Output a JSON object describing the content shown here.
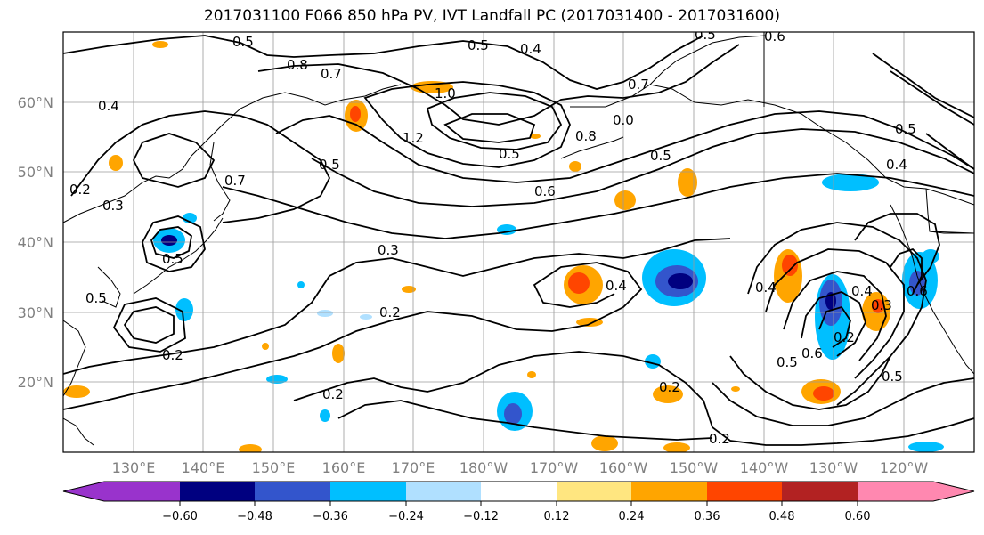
{
  "title": "2017031100 F066 850 hPa PV, IVT Landfall PC (2017031400 - 2017031600)",
  "lat_labels": [
    "60°N",
    "50°N",
    "40°N",
    "30°N",
    "20°N"
  ],
  "lon_labels": [
    "130°E",
    "140°E",
    "150°E",
    "160°E",
    "170°E",
    "180°W",
    "170°W",
    "160°W",
    "150°W",
    "140°W",
    "130°W",
    "120°W"
  ],
  "colorbar": {
    "ticks": [
      "−0.60",
      "−0.48",
      "−0.36",
      "−0.24",
      "−0.12",
      "0.12",
      "0.24",
      "0.36",
      "0.48",
      "0.60"
    ],
    "colors": [
      "#9933cc",
      "#000080",
      "#3355cc",
      "#00bfff",
      "#b0e0ff",
      "#ffffff",
      "#ffe680",
      "#ffa500",
      "#ff4500",
      "#b22222",
      "#ff88b0"
    ]
  },
  "contour_labels": [
    "0.5",
    "0.5",
    "0.4",
    "0.5",
    "0.6",
    "0.8",
    "0.7",
    "1.0",
    "0.4",
    "1.2",
    "0.5",
    "0.5",
    "0.8",
    "0.7",
    "0.0",
    "0.5",
    "0.6",
    "0.2",
    "0.3",
    "0.7",
    "0.5",
    "0.5",
    "0.3",
    "0.2",
    "0.4",
    "0.4",
    "0.2",
    "0.2",
    "0.2",
    "0.2",
    "0.4",
    "0.3",
    "0.6",
    "0.5",
    "0.6",
    "0.5",
    "0.2",
    "0.5",
    "0.4"
  ]
}
